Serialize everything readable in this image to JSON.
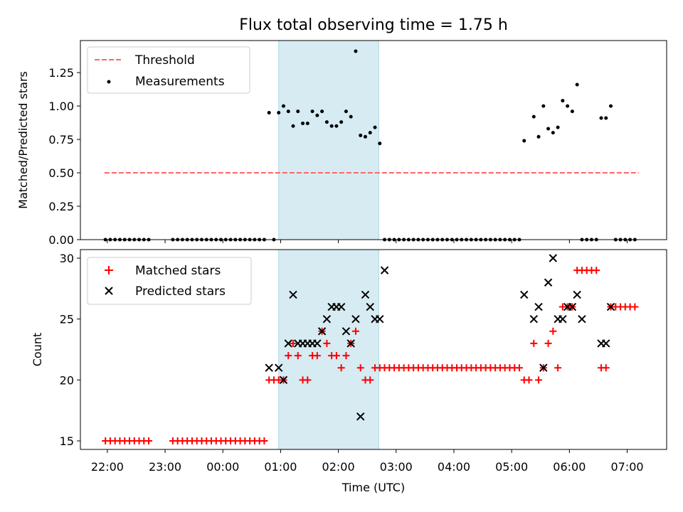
{
  "figure": {
    "title": "Flux total observing time = 1.75 h",
    "xlabel": "Time (UTC)"
  },
  "chart_data": [
    {
      "type": "scatter",
      "ylabel": "Matched/Predicted stars",
      "xlim": [
        "21:32",
        "07:41"
      ],
      "ylim": [
        0,
        1.49
      ],
      "yticks": [
        0,
        0.25,
        0.5,
        0.75,
        1.0,
        1.25
      ],
      "ytick_labels": [
        "0.00",
        "0.25",
        "0.50",
        "0.75",
        "1.00",
        "1.25"
      ],
      "grid": false,
      "legend_position": "upper left",
      "shaded_span": {
        "x": [
          "00:58",
          "02:42"
        ],
        "color": "#add8e6"
      },
      "threshold": {
        "name": "Threshold",
        "y": 0.5,
        "x": [
          "21:57",
          "07:12"
        ],
        "color": "#ff6666",
        "style": "dashed"
      },
      "series": [
        {
          "name": "Measurements",
          "color": "#000000",
          "points": [
            [
              "21:58",
              0
            ],
            [
              "22:03",
              0
            ],
            [
              "22:08",
              0
            ],
            [
              "22:13",
              0
            ],
            [
              "22:18",
              0
            ],
            [
              "22:23",
              0
            ],
            [
              "22:28",
              0
            ],
            [
              "22:33",
              0
            ],
            [
              "22:38",
              0
            ],
            [
              "22:43",
              0
            ],
            [
              "23:08",
              0
            ],
            [
              "23:13",
              0
            ],
            [
              "23:18",
              0
            ],
            [
              "23:23",
              0
            ],
            [
              "23:28",
              0
            ],
            [
              "23:33",
              0
            ],
            [
              "23:38",
              0
            ],
            [
              "23:43",
              0
            ],
            [
              "23:48",
              0
            ],
            [
              "23:53",
              0
            ],
            [
              "23:58",
              0
            ],
            [
              "00:03",
              0
            ],
            [
              "00:08",
              0
            ],
            [
              "00:13",
              0
            ],
            [
              "00:18",
              0
            ],
            [
              "00:23",
              0
            ],
            [
              "00:28",
              0
            ],
            [
              "00:33",
              0
            ],
            [
              "00:38",
              0
            ],
            [
              "00:43",
              0
            ],
            [
              "00:53",
              0
            ],
            [
              "00:48",
              0.95
            ],
            [
              "00:58",
              0.95
            ],
            [
              "01:03",
              1.0
            ],
            [
              "01:08",
              0.96
            ],
            [
              "01:13",
              0.85
            ],
            [
              "01:18",
              0.96
            ],
            [
              "01:23",
              0.87
            ],
            [
              "01:28",
              0.87
            ],
            [
              "01:33",
              0.96
            ],
            [
              "01:38",
              0.93
            ],
            [
              "01:43",
              0.96
            ],
            [
              "01:48",
              0.88
            ],
            [
              "01:53",
              0.85
            ],
            [
              "01:58",
              0.85
            ],
            [
              "02:03",
              0.88
            ],
            [
              "02:08",
              0.96
            ],
            [
              "02:13",
              0.92
            ],
            [
              "02:18",
              1.41
            ],
            [
              "02:23",
              0.78
            ],
            [
              "02:28",
              0.77
            ],
            [
              "02:33",
              0.8
            ],
            [
              "02:38",
              0.84
            ],
            [
              "02:43",
              0.72
            ],
            [
              "02:48",
              0
            ],
            [
              "02:53",
              0
            ],
            [
              "02:58",
              0
            ],
            [
              "03:03",
              0
            ],
            [
              "03:08",
              0
            ],
            [
              "03:13",
              0
            ],
            [
              "03:18",
              0
            ],
            [
              "03:23",
              0
            ],
            [
              "03:28",
              0
            ],
            [
              "03:33",
              0
            ],
            [
              "03:38",
              0
            ],
            [
              "03:43",
              0
            ],
            [
              "03:48",
              0
            ],
            [
              "03:53",
              0
            ],
            [
              "03:58",
              0
            ],
            [
              "04:03",
              0
            ],
            [
              "04:08",
              0
            ],
            [
              "04:13",
              0
            ],
            [
              "04:18",
              0
            ],
            [
              "04:23",
              0
            ],
            [
              "04:28",
              0
            ],
            [
              "04:33",
              0
            ],
            [
              "04:38",
              0
            ],
            [
              "04:43",
              0
            ],
            [
              "04:48",
              0
            ],
            [
              "04:53",
              0
            ],
            [
              "04:58",
              0
            ],
            [
              "05:03",
              0
            ],
            [
              "05:08",
              0
            ],
            [
              "05:13",
              0.74
            ],
            [
              "05:23",
              0.92
            ],
            [
              "05:28",
              0.77
            ],
            [
              "05:33",
              1.0
            ],
            [
              "05:38",
              0.83
            ],
            [
              "05:43",
              0.8
            ],
            [
              "05:48",
              0.84
            ],
            [
              "05:53",
              1.04
            ],
            [
              "05:58",
              1.0
            ],
            [
              "06:03",
              0.96
            ],
            [
              "06:08",
              1.16
            ],
            [
              "06:13",
              0
            ],
            [
              "06:18",
              0
            ],
            [
              "06:23",
              0
            ],
            [
              "06:28",
              0
            ],
            [
              "06:33",
              0.91
            ],
            [
              "06:38",
              0.91
            ],
            [
              "06:43",
              1.0
            ],
            [
              "06:48",
              0
            ],
            [
              "06:53",
              0
            ],
            [
              "06:58",
              0
            ],
            [
              "07:03",
              0
            ],
            [
              "07:08",
              0
            ]
          ]
        }
      ],
      "legend": [
        "Threshold",
        "Measurements"
      ]
    },
    {
      "type": "scatter",
      "ylabel": "Count",
      "xlim": [
        "21:32",
        "07:41"
      ],
      "ylim": [
        14.3,
        30.7
      ],
      "yticks": [
        15,
        20,
        25,
        30
      ],
      "ytick_labels": [
        "15",
        "20",
        "25",
        "30"
      ],
      "xticks": [
        "22:00",
        "23:00",
        "00:00",
        "01:00",
        "02:00",
        "03:00",
        "04:00",
        "05:00",
        "06:00",
        "07:00"
      ],
      "grid": false,
      "legend_position": "upper left",
      "shaded_span": {
        "x": [
          "00:58",
          "02:42"
        ],
        "color": "#add8e6"
      },
      "series": [
        {
          "name": "Matched stars",
          "color": "#ff0000",
          "marker": "+",
          "points": [
            [
              "21:58",
              15
            ],
            [
              "22:03",
              15
            ],
            [
              "22:08",
              15
            ],
            [
              "22:13",
              15
            ],
            [
              "22:18",
              15
            ],
            [
              "22:23",
              15
            ],
            [
              "22:28",
              15
            ],
            [
              "22:33",
              15
            ],
            [
              "22:38",
              15
            ],
            [
              "22:43",
              15
            ],
            [
              "23:08",
              15
            ],
            [
              "23:13",
              15
            ],
            [
              "23:18",
              15
            ],
            [
              "23:23",
              15
            ],
            [
              "23:28",
              15
            ],
            [
              "23:33",
              15
            ],
            [
              "23:38",
              15
            ],
            [
              "23:43",
              15
            ],
            [
              "23:48",
              15
            ],
            [
              "23:53",
              15
            ],
            [
              "23:58",
              15
            ],
            [
              "00:03",
              15
            ],
            [
              "00:08",
              15
            ],
            [
              "00:13",
              15
            ],
            [
              "00:18",
              15
            ],
            [
              "00:23",
              15
            ],
            [
              "00:28",
              15
            ],
            [
              "00:33",
              15
            ],
            [
              "00:38",
              15
            ],
            [
              "00:43",
              15
            ],
            [
              "00:48",
              20
            ],
            [
              "00:53",
              20
            ],
            [
              "00:58",
              20
            ],
            [
              "01:03",
              20
            ],
            [
              "01:08",
              22
            ],
            [
              "01:13",
              23
            ],
            [
              "01:18",
              22
            ],
            [
              "01:23",
              20
            ],
            [
              "01:28",
              20
            ],
            [
              "01:33",
              22
            ],
            [
              "01:38",
              22
            ],
            [
              "01:43",
              24
            ],
            [
              "01:48",
              23
            ],
            [
              "01:53",
              22
            ],
            [
              "01:58",
              22
            ],
            [
              "02:03",
              21
            ],
            [
              "02:08",
              22
            ],
            [
              "02:13",
              23
            ],
            [
              "02:18",
              24
            ],
            [
              "02:23",
              21
            ],
            [
              "02:28",
              20
            ],
            [
              "02:33",
              20
            ],
            [
              "02:38",
              21
            ],
            [
              "02:43",
              21
            ],
            [
              "02:48",
              21
            ],
            [
              "02:53",
              21
            ],
            [
              "02:58",
              21
            ],
            [
              "03:03",
              21
            ],
            [
              "03:08",
              21
            ],
            [
              "03:13",
              21
            ],
            [
              "03:18",
              21
            ],
            [
              "03:23",
              21
            ],
            [
              "03:28",
              21
            ],
            [
              "03:33",
              21
            ],
            [
              "03:38",
              21
            ],
            [
              "03:43",
              21
            ],
            [
              "03:48",
              21
            ],
            [
              "03:53",
              21
            ],
            [
              "03:58",
              21
            ],
            [
              "04:03",
              21
            ],
            [
              "04:08",
              21
            ],
            [
              "04:13",
              21
            ],
            [
              "04:18",
              21
            ],
            [
              "04:23",
              21
            ],
            [
              "04:28",
              21
            ],
            [
              "04:33",
              21
            ],
            [
              "04:38",
              21
            ],
            [
              "04:43",
              21
            ],
            [
              "04:48",
              21
            ],
            [
              "04:53",
              21
            ],
            [
              "04:58",
              21
            ],
            [
              "05:03",
              21
            ],
            [
              "05:08",
              21
            ],
            [
              "05:13",
              20
            ],
            [
              "05:18",
              20
            ],
            [
              "05:23",
              23
            ],
            [
              "05:28",
              20
            ],
            [
              "05:33",
              21
            ],
            [
              "05:38",
              23
            ],
            [
              "05:43",
              24
            ],
            [
              "05:48",
              21
            ],
            [
              "05:53",
              26
            ],
            [
              "05:58",
              26
            ],
            [
              "06:03",
              26
            ],
            [
              "06:08",
              29
            ],
            [
              "06:13",
              29
            ],
            [
              "06:18",
              29
            ],
            [
              "06:23",
              29
            ],
            [
              "06:28",
              29
            ],
            [
              "06:33",
              21
            ],
            [
              "06:38",
              21
            ],
            [
              "06:43",
              26
            ],
            [
              "06:48",
              26
            ],
            [
              "06:53",
              26
            ],
            [
              "06:58",
              26
            ],
            [
              "07:03",
              26
            ],
            [
              "07:08",
              26
            ]
          ]
        },
        {
          "name": "Predicted stars",
          "color": "#000000",
          "marker": "x",
          "points": [
            [
              "00:48",
              21
            ],
            [
              "00:58",
              21
            ],
            [
              "01:03",
              20
            ],
            [
              "01:08",
              23
            ],
            [
              "01:13",
              27
            ],
            [
              "01:18",
              23
            ],
            [
              "01:23",
              23
            ],
            [
              "01:28",
              23
            ],
            [
              "01:33",
              23
            ],
            [
              "01:38",
              23
            ],
            [
              "01:43",
              24
            ],
            [
              "01:48",
              25
            ],
            [
              "01:53",
              26
            ],
            [
              "01:58",
              26
            ],
            [
              "02:03",
              26
            ],
            [
              "02:08",
              24
            ],
            [
              "02:13",
              23
            ],
            [
              "02:18",
              25
            ],
            [
              "02:23",
              17
            ],
            [
              "02:28",
              27
            ],
            [
              "02:33",
              26
            ],
            [
              "02:38",
              25
            ],
            [
              "02:43",
              25
            ],
            [
              "02:48",
              29
            ],
            [
              "05:13",
              27
            ],
            [
              "05:23",
              25
            ],
            [
              "05:28",
              26
            ],
            [
              "05:33",
              21
            ],
            [
              "05:38",
              28
            ],
            [
              "05:43",
              30
            ],
            [
              "05:48",
              25
            ],
            [
              "05:53",
              25
            ],
            [
              "05:58",
              26
            ],
            [
              "06:03",
              26
            ],
            [
              "06:08",
              27
            ],
            [
              "06:13",
              25
            ],
            [
              "06:33",
              23
            ],
            [
              "06:38",
              23
            ],
            [
              "06:43",
              26
            ]
          ]
        }
      ],
      "legend": [
        "Matched stars",
        "Predicted stars"
      ]
    }
  ]
}
